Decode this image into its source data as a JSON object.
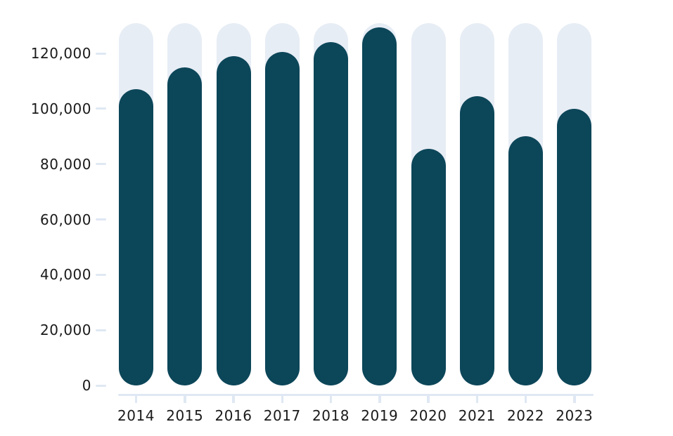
{
  "chart_data": {
    "type": "bar",
    "title": "",
    "xlabel": "",
    "ylabel": "",
    "categories": [
      "2014",
      "2015",
      "2016",
      "2017",
      "2018",
      "2019",
      "2020",
      "2021",
      "2022",
      "2023"
    ],
    "values": [
      107000,
      115000,
      119000,
      120500,
      124000,
      129500,
      85500,
      104500,
      90000,
      100000
    ],
    "track_value": 131000,
    "y_ticks": {
      "values": [
        0,
        20000,
        40000,
        60000,
        80000,
        100000,
        120000
      ],
      "labels": [
        "0",
        "20,000",
        "40,000",
        "60,000",
        "80,000",
        "100,000",
        "120,000"
      ]
    },
    "ylim": [
      0,
      131000
    ],
    "grid": false,
    "legend": false,
    "bar_style": "rounded-pill-with-background-track",
    "colors": {
      "bar": "#0c4659",
      "track": "#e7edf5",
      "axis": "#dfe8f3",
      "text": "#1a1a1a",
      "background": "#ffffff"
    }
  }
}
